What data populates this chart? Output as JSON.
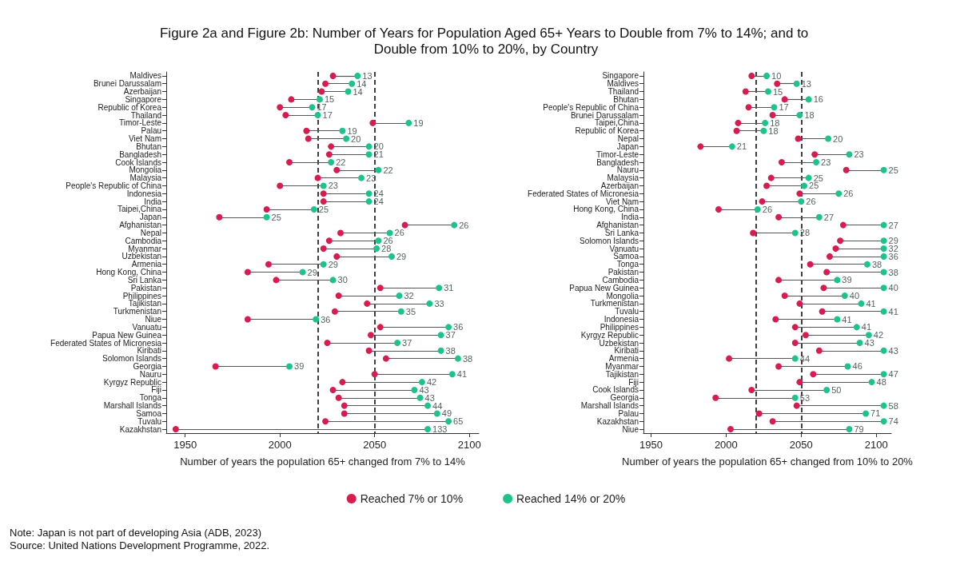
{
  "chart_data": [
    {
      "type": "scatter",
      "orientation": "horizontal",
      "title": "Figure 2a and Figure 2b: Number of Years for Population Aged 65+ Years to Double from 7% to 14%; and to Double from 10% to 20%, by Country",
      "xlabel": "Number of years the population 65+ changed from 7% to 14%",
      "categories": [
        "Maldives",
        "Brunei Darussalam",
        "Azerbaijan",
        "Singapore",
        "Republic of Korea",
        "Thailand",
        "Timor-Leste",
        "Palau",
        "Viet Nam",
        "Bhutan",
        "Bangladesh",
        "Cook Islands",
        "Mongolia",
        "Malaysia",
        "People's Republic of China",
        "Indonesia",
        "India",
        "Taipei,China",
        "Japan",
        "Afghanistan",
        "Nepal",
        "Cambodia",
        "Myanmar",
        "Uzbekistan",
        "Armenia",
        "Hong Kong, China",
        "Sri Lanka",
        "Pakistan",
        "Philippines",
        "Tajikistan",
        "Turkmenistan",
        "Niue",
        "Vanuatu",
        "Papua New Guinea",
        "Federated States of Micronesia",
        "Kiribati",
        "Solomon Islands",
        "Georgia",
        "Nauru",
        "Kyrgyz Republic",
        "Fiji",
        "Tonga",
        "Marshall Islands",
        "Samoa",
        "Tuvalu",
        "Kazakhstan"
      ],
      "series": [
        {
          "name": "Reached 7% or 10%",
          "color": "#d91c50",
          "values": [
            2028,
            2024,
            2022,
            2006,
            2000,
            2003,
            2049,
            2014,
            2015,
            2027,
            2026,
            2005,
            2030,
            2020,
            2000,
            2023,
            2023,
            1993,
            1968,
            2066,
            2032,
            2026,
            2023,
            2030,
            1994,
            1983,
            1998,
            2053,
            2031,
            2046,
            2029,
            1983,
            2053,
            2048,
            2025,
            2047,
            2056,
            1966,
            2050,
            2033,
            2028,
            2031,
            2034,
            2034,
            2024,
            1945
          ]
        },
        {
          "name": "Reached 14% or 20%",
          "color": "#1ec38a",
          "values": [
            2041,
            2038,
            2036,
            2021,
            2017,
            2020,
            2068,
            2033,
            2035,
            2047,
            2047,
            2027,
            2052,
            2043,
            2023,
            2047,
            2047,
            2018,
            1993,
            2092,
            2058,
            2052,
            2051,
            2059,
            2023,
            2012,
            2028,
            2084,
            2063,
            2079,
            2064,
            2019,
            2089,
            2085,
            2062,
            2085,
            2094,
            2005,
            2091,
            2075,
            2071,
            2074,
            2078,
            2083,
            2089,
            2078
          ]
        }
      ],
      "xlim": [
        1940,
        2105
      ],
      "xticks": [
        1950,
        2000,
        2050,
        2100
      ],
      "ref_lines": [
        {
          "axis": "x",
          "value": 2020,
          "label": null,
          "color": "#000000",
          "line_style": "dashed"
        },
        {
          "axis": "x",
          "value": 2050,
          "label": null,
          "color": "#000000",
          "line_style": "dashed"
        }
      ],
      "marker": "circle",
      "grid": false,
      "legend": "bottom",
      "annotations": [
        "Note: Japan is not part of developing Asia (ADB, 2023)",
        "Source: United Nations Development Programme, 2022.",
        {
          "text": "13",
          "x": 2041,
          "y": "Maldives"
        },
        {
          "text": "14",
          "x": 2038,
          "y": "Brunei Darussalam"
        },
        {
          "text": "14",
          "x": 2036,
          "y": "Azerbaijan"
        },
        {
          "text": "15",
          "x": 2021,
          "y": "Singapore"
        },
        {
          "text": "17",
          "x": 2017,
          "y": "Republic of Korea"
        },
        {
          "text": "17",
          "x": 2020,
          "y": "Thailand"
        },
        {
          "text": "19",
          "x": 2068,
          "y": "Timor-Leste"
        },
        {
          "text": "19",
          "x": 2033,
          "y": "Palau"
        },
        {
          "text": "20",
          "x": 2035,
          "y": "Viet Nam"
        },
        {
          "text": "20",
          "x": 2047,
          "y": "Bhutan"
        },
        {
          "text": "21",
          "x": 2047,
          "y": "Bangladesh"
        },
        {
          "text": "22",
          "x": 2027,
          "y": "Cook Islands"
        },
        {
          "text": "22",
          "x": 2052,
          "y": "Mongolia"
        },
        {
          "text": "23",
          "x": 2043,
          "y": "Malaysia"
        },
        {
          "text": "23",
          "x": 2023,
          "y": "People's Republic of China"
        },
        {
          "text": "24",
          "x": 2047,
          "y": "Indonesia"
        },
        {
          "text": "24",
          "x": 2047,
          "y": "India"
        },
        {
          "text": "25",
          "x": 2018,
          "y": "Taipei,China"
        },
        {
          "text": "25",
          "x": 1993,
          "y": "Japan"
        },
        {
          "text": "26",
          "x": 2092,
          "y": "Afghanistan"
        },
        {
          "text": "26",
          "x": 2058,
          "y": "Nepal"
        },
        {
          "text": "26",
          "x": 2052,
          "y": "Cambodia"
        },
        {
          "text": "28",
          "x": 2051,
          "y": "Myanmar"
        },
        {
          "text": "29",
          "x": 2059,
          "y": "Uzbekistan"
        },
        {
          "text": "29",
          "x": 2023,
          "y": "Armenia"
        },
        {
          "text": "29",
          "x": 2012,
          "y": "Hong Kong, China"
        },
        {
          "text": "30",
          "x": 2028,
          "y": "Sri Lanka"
        },
        {
          "text": "31",
          "x": 2084,
          "y": "Pakistan"
        },
        {
          "text": "32",
          "x": 2063,
          "y": "Philippines"
        },
        {
          "text": "33",
          "x": 2079,
          "y": "Tajikistan"
        },
        {
          "text": "35",
          "x": 2064,
          "y": "Turkmenistan"
        },
        {
          "text": "36",
          "x": 2019,
          "y": "Niue"
        },
        {
          "text": "36",
          "x": 2089,
          "y": "Vanuatu"
        },
        {
          "text": "37",
          "x": 2085,
          "y": "Papua New Guinea"
        },
        {
          "text": "37",
          "x": 2062,
          "y": "Federated States of Micronesia"
        },
        {
          "text": "38",
          "x": 2085,
          "y": "Kiribati"
        },
        {
          "text": "38",
          "x": 2094,
          "y": "Solomon Islands"
        },
        {
          "text": "39",
          "x": 2005,
          "y": "Georgia"
        },
        {
          "text": "41",
          "x": 2091,
          "y": "Nauru"
        },
        {
          "text": "42",
          "x": 2075,
          "y": "Kyrgyz Republic"
        },
        {
          "text": "43",
          "x": 2071,
          "y": "Fiji"
        },
        {
          "text": "43",
          "x": 2074,
          "y": "Tonga"
        },
        {
          "text": "44",
          "x": 2078,
          "y": "Marshall Islands"
        },
        {
          "text": "49",
          "x": 2083,
          "y": "Samoa"
        },
        {
          "text": "65",
          "x": 2089,
          "y": "Tuvalu"
        },
        {
          "text": "133",
          "x": 2078,
          "y": "Kazakhstan"
        }
      ]
    },
    {
      "type": "scatter",
      "orientation": "horizontal",
      "xlabel": "Number of years the population 65+ changed from 10% to 20%",
      "categories": [
        "Singapore",
        "Maldives",
        "Thailand",
        "Bhutan",
        "People's Republic of China",
        "Brunei Darussalam",
        "Taipei,China",
        "Republic of Korea",
        "Nepal",
        "Japan",
        "Timor-Leste",
        "Bangladesh",
        "Nauru",
        "Malaysia",
        "Azerbaijan",
        "Federated States of Micronesia",
        "Viet Nam",
        "Hong Kong, China",
        "India",
        "Afghanistan",
        "Sri Lanka",
        "Solomon Islands",
        "Vanuatu",
        "Samoa",
        "Tonga",
        "Pakistan",
        "Cambodia",
        "Papua New Guinea",
        "Mongolia",
        "Turkmenistan",
        "Tuvalu",
        "Indonesia",
        "Philippines",
        "Kyrgyz Republic",
        "Uzbekistan",
        "Kiribati",
        "Armenia",
        "Myanmar",
        "Tajikistan",
        "Fiji",
        "Cook Islands",
        "Georgia",
        "Marshall Islands",
        "Palau",
        "Kazakhstan",
        "Niue"
      ],
      "series": [
        {
          "color": "#d91c50",
          "values": [
            2017,
            2034,
            2013,
            2039,
            2015,
            2031,
            2008,
            2007,
            2048,
            1983,
            2059,
            2037,
            2080,
            2030,
            2027,
            2049,
            2024,
            1995,
            2035,
            2078,
            2018,
            2076,
            2073,
            2069,
            2056,
            2067,
            2035,
            2065,
            2039,
            2049,
            2064,
            2033,
            2046,
            2053,
            2046,
            2062,
            2002,
            2035,
            2058,
            2049,
            2017,
            1993,
            2047,
            2022,
            2031,
            2003
          ]
        },
        {
          "color": "#1ec38a",
          "values": [
            2027,
            2047,
            2028,
            2055,
            2032,
            2049,
            2026,
            2025,
            2068,
            2004,
            2082,
            2060,
            2105,
            2055,
            2052,
            2075,
            2050,
            2021,
            2062,
            2105,
            2046,
            2105,
            2105,
            2105,
            2094,
            2105,
            2074,
            2105,
            2079,
            2090,
            2105,
            2074,
            2087,
            2095,
            2089,
            2105,
            2046,
            2081,
            2105,
            2097,
            2067,
            2046,
            2105,
            2093,
            2105,
            2082
          ]
        }
      ],
      "xlim": [
        1945,
        2110
      ],
      "xticks": [
        1950,
        2000,
        2050,
        2100
      ],
      "ref_lines": [
        {
          "axis": "x",
          "value": 2020,
          "label": null,
          "color": "#000000",
          "line_style": "dashed"
        },
        {
          "axis": "x",
          "value": 2050,
          "label": null,
          "color": "#000000",
          "line_style": "dashed"
        }
      ],
      "marker": "circle",
      "grid": false,
      "annotations": [
        {
          "text": "10",
          "x": 2027,
          "y": "Singapore"
        },
        {
          "text": "13",
          "x": 2047,
          "y": "Maldives"
        },
        {
          "text": "15",
          "x": 2028,
          "y": "Thailand"
        },
        {
          "text": "16",
          "x": 2055,
          "y": "Bhutan"
        },
        {
          "text": "17",
          "x": 2032,
          "y": "People's Republic of China"
        },
        {
          "text": "18",
          "x": 2049,
          "y": "Brunei Darussalam"
        },
        {
          "text": "18",
          "x": 2026,
          "y": "Taipei,China"
        },
        {
          "text": "18",
          "x": 2025,
          "y": "Republic of Korea"
        },
        {
          "text": "20",
          "x": 2068,
          "y": "Nepal"
        },
        {
          "text": "21",
          "x": 2004,
          "y": "Japan"
        },
        {
          "text": "23",
          "x": 2082,
          "y": "Timor-Leste"
        },
        {
          "text": "23",
          "x": 2060,
          "y": "Bangladesh"
        },
        {
          "text": "25",
          "x": 2105,
          "y": "Nauru"
        },
        {
          "text": "25",
          "x": 2055,
          "y": "Malaysia"
        },
        {
          "text": "25",
          "x": 2052,
          "y": "Azerbaijan"
        },
        {
          "text": "26",
          "x": 2075,
          "y": "Federated States of Micronesia"
        },
        {
          "text": "26",
          "x": 2050,
          "y": "Viet Nam"
        },
        {
          "text": "26",
          "x": 2021,
          "y": "Hong Kong, China"
        },
        {
          "text": "27",
          "x": 2062,
          "y": "India"
        },
        {
          "text": "27",
          "x": 2105,
          "y": "Afghanistan"
        },
        {
          "text": "28",
          "x": 2046,
          "y": "Sri Lanka"
        },
        {
          "text": "29",
          "x": 2105,
          "y": "Solomon Islands"
        },
        {
          "text": "32",
          "x": 2105,
          "y": "Vanuatu"
        },
        {
          "text": "36",
          "x": 2105,
          "y": "Samoa"
        },
        {
          "text": "38",
          "x": 2094,
          "y": "Tonga"
        },
        {
          "text": "38",
          "x": 2105,
          "y": "Pakistan"
        },
        {
          "text": "39",
          "x": 2074,
          "y": "Cambodia"
        },
        {
          "text": "40",
          "x": 2105,
          "y": "Papua New Guinea"
        },
        {
          "text": "40",
          "x": 2079,
          "y": "Mongolia"
        },
        {
          "text": "41",
          "x": 2090,
          "y": "Turkmenistan"
        },
        {
          "text": "41",
          "x": 2105,
          "y": "Tuvalu"
        },
        {
          "text": "41",
          "x": 2074,
          "y": "Indonesia"
        },
        {
          "text": "41",
          "x": 2087,
          "y": "Philippines"
        },
        {
          "text": "42",
          "x": 2095,
          "y": "Kyrgyz Republic"
        },
        {
          "text": "43",
          "x": 2089,
          "y": "Uzbekistan"
        },
        {
          "text": "43",
          "x": 2105,
          "y": "Kiribati"
        },
        {
          "text": "44",
          "x": 2046,
          "y": "Armenia"
        },
        {
          "text": "46",
          "x": 2081,
          "y": "Myanmar"
        },
        {
          "text": "47",
          "x": 2105,
          "y": "Tajikistan"
        },
        {
          "text": "48",
          "x": 2097,
          "y": "Fiji"
        },
        {
          "text": "50",
          "x": 2067,
          "y": "Cook Islands"
        },
        {
          "text": "53",
          "x": 2046,
          "y": "Georgia"
        },
        {
          "text": "58",
          "x": 2105,
          "y": "Marshall Islands"
        },
        {
          "text": "71",
          "x": 2093,
          "y": "Palau"
        },
        {
          "text": "74",
          "x": 2105,
          "y": "Kazakhstan"
        },
        {
          "text": "79",
          "x": 2082,
          "y": "Niue"
        }
      ]
    }
  ]
}
